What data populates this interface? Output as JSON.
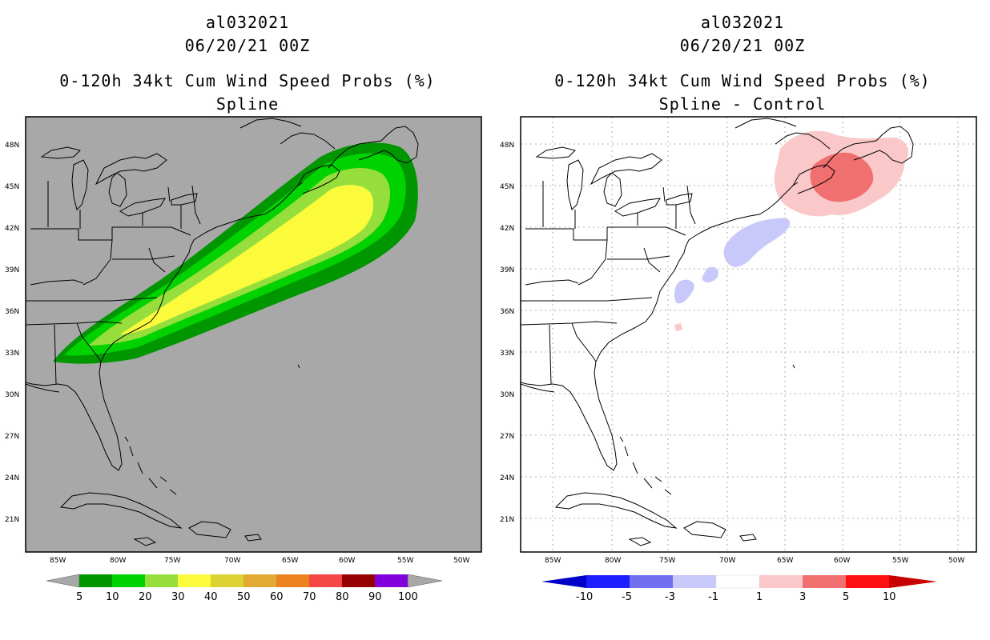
{
  "left": {
    "storm_id": "al032021",
    "datetime": "06/20/21 00Z",
    "product": "0-120h 34kt Cum Wind Speed Probs (%)",
    "subtitle": "Spline",
    "background_color": "#a8a8a8",
    "lat_labels": [
      "48N",
      "45N",
      "42N",
      "39N",
      "36N",
      "33N",
      "30N",
      "27N",
      "24N",
      "21N"
    ],
    "lon_labels": [
      "85W",
      "80W",
      "75W",
      "70W",
      "65W",
      "60W",
      "55W",
      "50W"
    ],
    "colorbar": {
      "colors": [
        "#009600",
        "#00d200",
        "#96de3c",
        "#fbfb3c",
        "#dcd232",
        "#e1aa32",
        "#eb821e",
        "#f54646",
        "#960000",
        "#8200dc"
      ],
      "labels": [
        "5",
        "10",
        "20",
        "30",
        "40",
        "50",
        "60",
        "70",
        "80",
        "90",
        "100"
      ]
    }
  },
  "right": {
    "storm_id": "al032021",
    "datetime": "06/20/21 00Z",
    "product": "0-120h 34kt Cum Wind Speed Probs (%)",
    "subtitle": "Spline - Control",
    "background_color": "#ffffff",
    "lat_labels": [
      "48N",
      "45N",
      "42N",
      "39N",
      "36N",
      "33N",
      "30N",
      "27N",
      "24N",
      "21N"
    ],
    "lon_labels": [
      "85W",
      "80W",
      "75W",
      "70W",
      "65W",
      "60W",
      "55W",
      "50W"
    ],
    "colorbar": {
      "colors": [
        "#0000c8",
        "#1e1eff",
        "#7070f0",
        "#c8c8fa",
        "#ffffff",
        "#fac8c8",
        "#f07070",
        "#ff1010",
        "#c80000"
      ],
      "labels": [
        "-10",
        "-5",
        "-3",
        "-1",
        "1",
        "3",
        "5",
        "10"
      ]
    }
  }
}
